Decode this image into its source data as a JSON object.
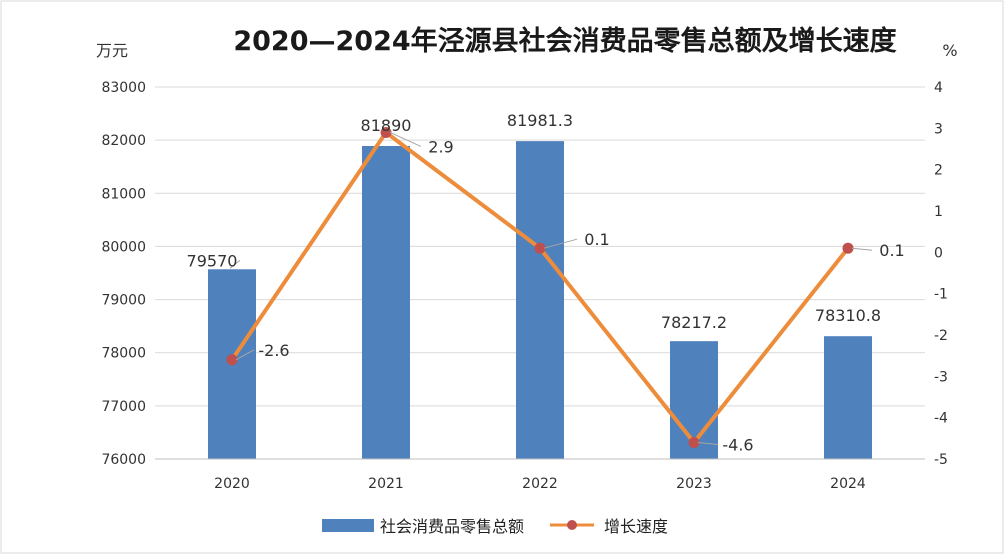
{
  "chart_data": {
    "type": "bar",
    "title": "2020—2024年泾源县社会消费品零售总额及增长速度",
    "y_left_unit": "万元",
    "y_right_unit": "%",
    "categories": [
      "2020",
      "2021",
      "2022",
      "2023",
      "2024"
    ],
    "y_left_ticks": [
      "83000",
      "82000",
      "81000",
      "80000",
      "79000",
      "78000",
      "77000",
      "76000"
    ],
    "y_right_ticks": [
      "4",
      "3",
      "2",
      "1",
      "0",
      "-1",
      "-2",
      "-3",
      "-4",
      "-5"
    ],
    "ylim_left": [
      76000,
      83000
    ],
    "ylim_right": [
      -5,
      4
    ],
    "grid": "horizontal",
    "legend_position": "bottom",
    "series": [
      {
        "name": "社会消费品零售总额",
        "type": "bar",
        "axis": "left",
        "color": "#4f81bd",
        "values": [
          79570,
          81890,
          81981.3,
          78217.2,
          78310.8
        ],
        "labels": [
          "79570",
          "81890",
          "81981.3",
          "78217.2",
          "78310.8"
        ]
      },
      {
        "name": "增长速度",
        "type": "line",
        "axis": "right",
        "color": "#ed8d3c",
        "marker_color": "#c0504d",
        "values": [
          -2.6,
          2.9,
          0.1,
          -4.6,
          0.1
        ],
        "labels": [
          "-2.6",
          "2.9",
          "0.1",
          "-4.6",
          "0.1"
        ]
      }
    ]
  }
}
